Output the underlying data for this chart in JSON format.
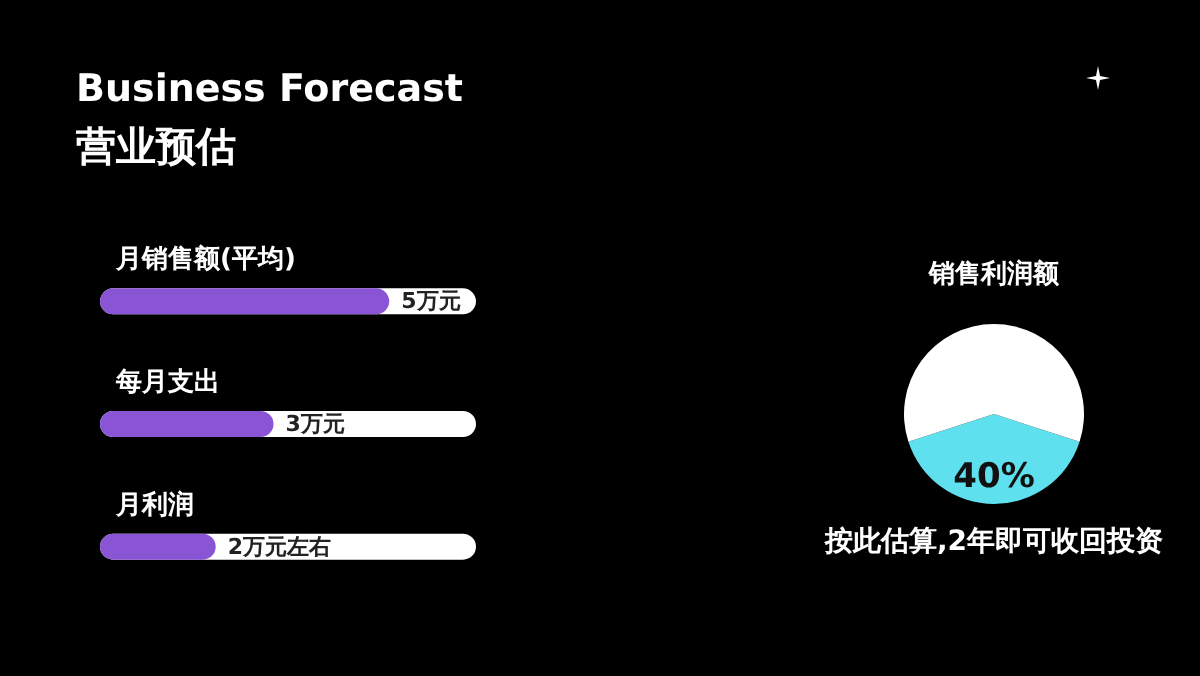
{
  "chart_data": [
    {
      "type": "bar",
      "title": "Business Forecast",
      "subtitle": "营业预估",
      "orientation": "horizontal",
      "categories": [
        "月销售额(平均)",
        "每月支出",
        "月利润"
      ],
      "values": [
        5,
        3,
        2
      ],
      "value_labels": [
        "5万元",
        "3万元",
        "2万元左右"
      ],
      "color": "#8a55d4"
    },
    {
      "type": "pie",
      "title": "销售利润额",
      "categories": [
        null,
        null
      ],
      "values": [
        40,
        60
      ],
      "colors": [
        "#5fe0ee",
        "#ffffff"
      ],
      "value_labels": [
        "40%",
        null
      ],
      "annotations": [
        "按此估算,2年即可收回投资"
      ]
    }
  ]
}
